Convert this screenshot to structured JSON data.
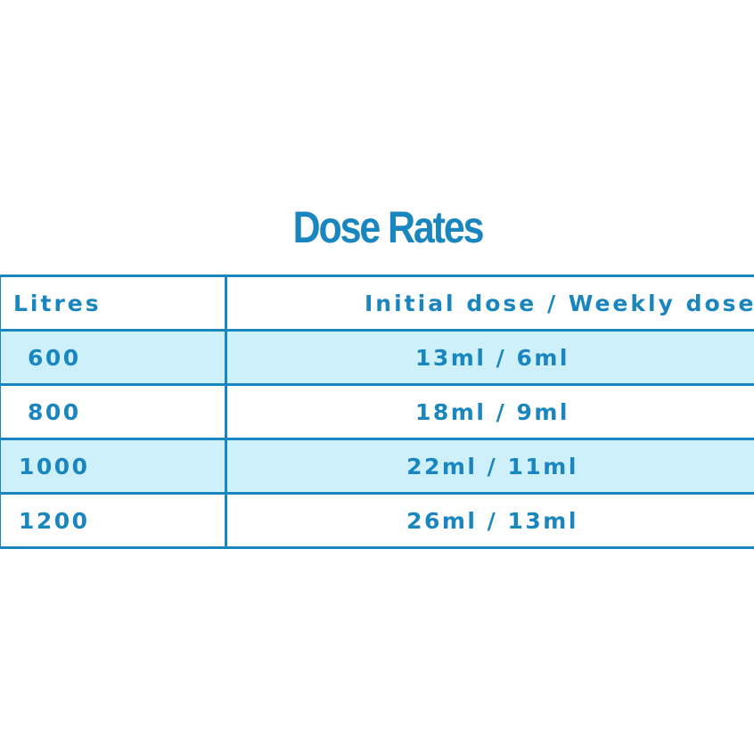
{
  "title": "Dose Rates",
  "table": {
    "headers": {
      "litres": "Litres",
      "dose": "Initial dose / Weekly dose"
    },
    "rows": [
      {
        "litres": "600",
        "dose": "13ml / 6ml"
      },
      {
        "litres": "800",
        "dose": "18ml / 9ml"
      },
      {
        "litres": "1000",
        "dose": "22ml / 11ml"
      },
      {
        "litres": "1200",
        "dose": "26ml / 13ml"
      }
    ]
  },
  "colors": {
    "accent": "#1a86c0",
    "row_shade": "#cdf0fb",
    "background": "#ffffff"
  }
}
